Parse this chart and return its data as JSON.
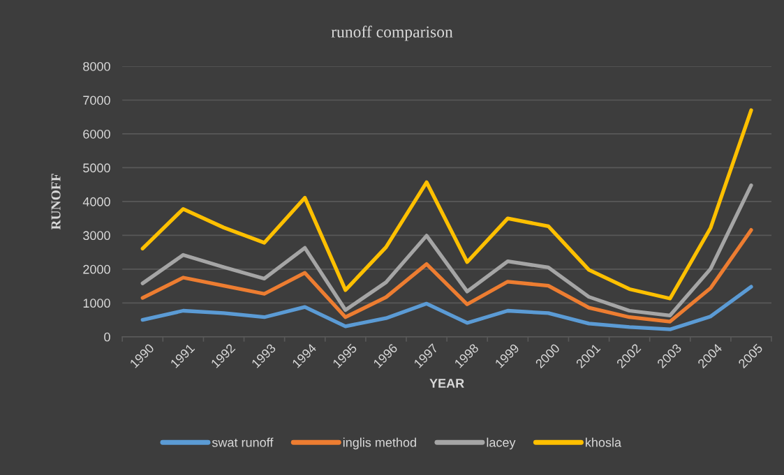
{
  "chart_data": {
    "type": "line",
    "title": "runoff comparison",
    "xlabel": "YEAR",
    "ylabel": "RUNOFF",
    "categories": [
      "1990",
      "1991",
      "1992",
      "1993",
      "1994",
      "1995",
      "1996",
      "1997",
      "1998",
      "1999",
      "2000",
      "2001",
      "2002",
      "2003",
      "2004",
      "2005"
    ],
    "ylim": [
      0,
      8000
    ],
    "yticks": [
      0,
      1000,
      2000,
      3000,
      4000,
      5000,
      6000,
      7000,
      8000
    ],
    "grid": "y",
    "legend": "bottom",
    "series": [
      {
        "name": "swat runoff",
        "color": "#5b9bd5",
        "values": [
          500,
          770,
          700,
          580,
          880,
          310,
          550,
          980,
          410,
          770,
          700,
          390,
          290,
          220,
          600,
          1480
        ]
      },
      {
        "name": "inglis method",
        "color": "#ed7d31",
        "values": [
          1150,
          1750,
          1510,
          1270,
          1890,
          580,
          1170,
          2150,
          960,
          1630,
          1510,
          860,
          580,
          450,
          1440,
          3160
        ]
      },
      {
        "name": "lacey",
        "color": "#a5a5a5",
        "values": [
          1580,
          2420,
          2060,
          1720,
          2630,
          790,
          1610,
          2990,
          1340,
          2230,
          2050,
          1180,
          770,
          630,
          2010,
          4480
        ]
      },
      {
        "name": "khosla",
        "color": "#ffc000",
        "values": [
          2610,
          3780,
          3230,
          2780,
          4110,
          1380,
          2650,
          4570,
          2210,
          3500,
          3270,
          1980,
          1410,
          1130,
          3220,
          6700
        ]
      }
    ]
  }
}
